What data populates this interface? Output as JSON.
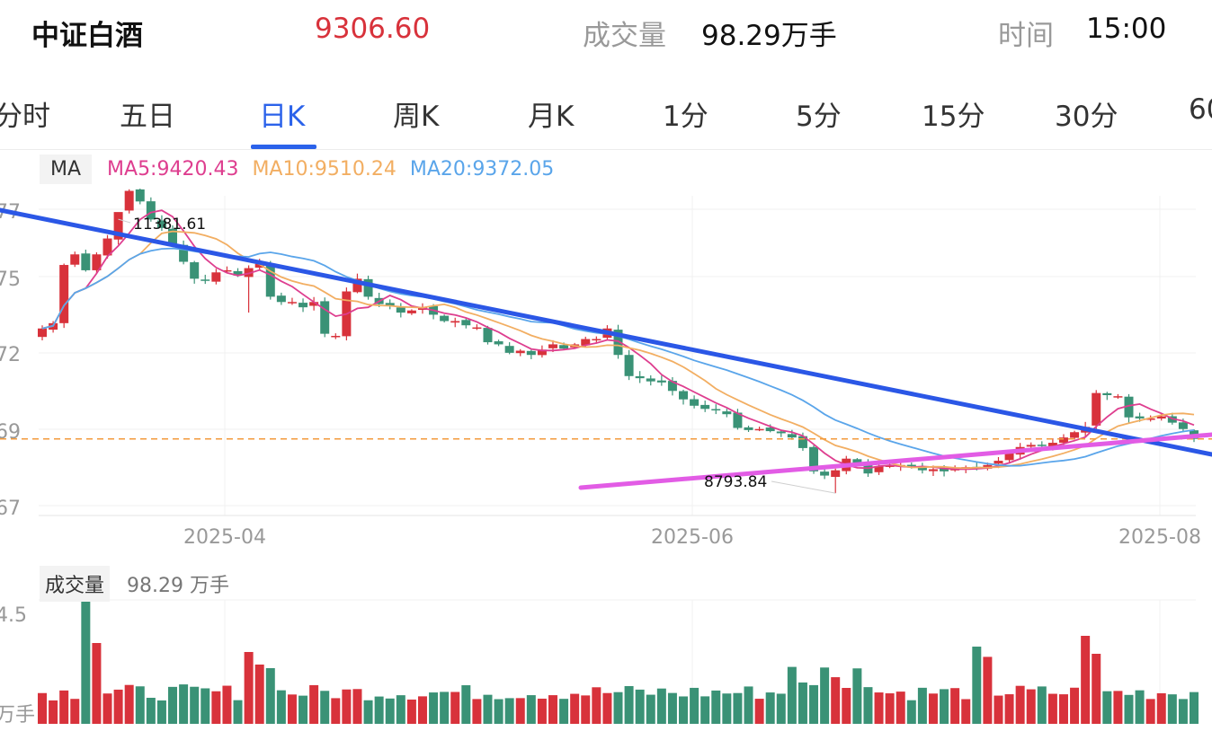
{
  "header": {
    "name": "中证白酒",
    "price": "9306.60",
    "volume_label": "成交量",
    "volume_value": "98.29万手",
    "time_label": "时间",
    "time_value": "15:00"
  },
  "tabs": [
    "分时",
    "五日",
    "日K",
    "周K",
    "月K",
    "1分",
    "5分",
    "15分",
    "30分",
    "60"
  ],
  "active_tab": "日K",
  "legend": {
    "tag": "MA",
    "ma5": "MA5:9420.43",
    "ma10": "MA10:9510.24",
    "ma20": "MA20:9372.05"
  },
  "volume_panel": {
    "tag": "成交量",
    "value": "98.29 万手"
  },
  "colors": {
    "up": "#d8323b",
    "down": "#3a9276",
    "ma5": "#de3e8f",
    "ma10": "#f2ae62",
    "ma20": "#5aa5ea",
    "trend_down": "#2b57e6",
    "trend_up": "#e25ce5",
    "last_price": "#f39a3b",
    "active_tab": "#2b62ea"
  },
  "chart_data": {
    "type": "candlestick",
    "y_ticks": [
      "77",
      "75",
      "72",
      "69",
      "67"
    ],
    "x_ticks": [
      "2025-04",
      "2025-06",
      "2025-08"
    ],
    "annotations": {
      "high": "11381.61",
      "low": "8793.84"
    },
    "series_close": [
      10350,
      10400,
      10950,
      11050,
      10900,
      11050,
      11200,
      11450,
      11650,
      11550,
      11380,
      11300,
      11150,
      10980,
      10820,
      10800,
      10880,
      10900,
      10850,
      10920,
      10960,
      10650,
      10600,
      10600,
      10550,
      10600,
      10300,
      10280,
      10700,
      10820,
      10650,
      10580,
      10560,
      10500,
      10520,
      10550,
      10480,
      10420,
      10420,
      10380,
      10360,
      10220,
      10200,
      10120,
      10140,
      10100,
      10150,
      10200,
      10160,
      10200,
      10250,
      10250,
      10350,
      10100,
      9900,
      9880,
      9850,
      9840,
      9760,
      9680,
      9620,
      9590,
      9580,
      9540,
      9410,
      9390,
      9400,
      9380,
      9360,
      9320,
      9220,
      9000,
      8960,
      9010,
      9120,
      9080,
      8980,
      9050,
      9060,
      9060,
      9050,
      9010,
      9020,
      9000,
      9030,
      9040,
      9030,
      9060,
      9100,
      9170,
      9230,
      9250,
      9240,
      9270,
      9320,
      9370,
      9420,
      9740,
      9720,
      9710,
      9510,
      9500,
      9500,
      9520,
      9460,
      9400,
      9306.6
    ],
    "last_price": 9306.6
  }
}
